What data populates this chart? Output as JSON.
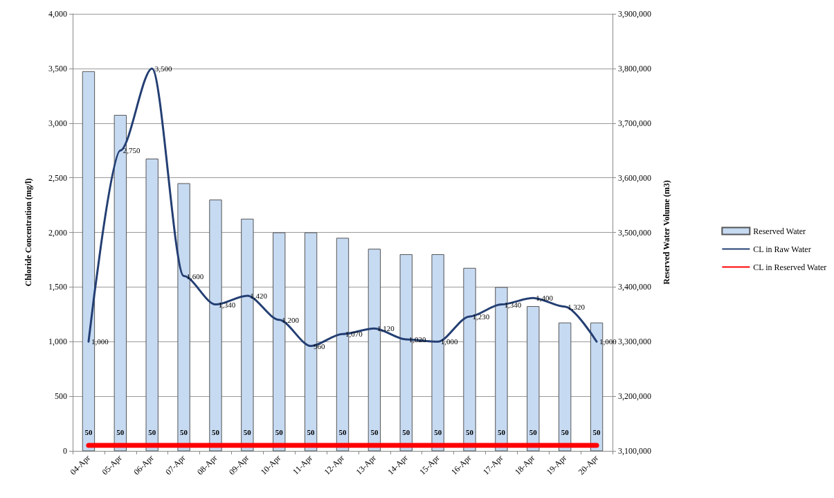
{
  "chart_data": {
    "type": "bar",
    "ylabel": "Chloride Concentration (mg/l)",
    "y2label": "Reserved Water Volume (m3)",
    "categories": [
      "04-Apr",
      "05-Apr",
      "06-Apr",
      "07-Apr",
      "08-Apr",
      "09-Apr",
      "10-Apr",
      "11-Apr",
      "12-Apr",
      "13-Apr",
      "14-Apr",
      "15-Apr",
      "16-Apr",
      "17-Apr",
      "18-Apr",
      "19-Apr",
      "20-Apr"
    ],
    "series": [
      {
        "name": "Reserved Water",
        "axis": "y2",
        "color": "#c6daf2",
        "values": [
          3795000,
          3715000,
          3635000,
          3590000,
          3560000,
          3525000,
          3500000,
          3500000,
          3490000,
          3470000,
          3460000,
          3460000,
          3435000,
          3400000,
          3365000,
          3335000,
          3335000
        ]
      },
      {
        "name": "CL in Raw Water",
        "type": "line",
        "color": "#243f73",
        "values": [
          1000,
          2750,
          3500,
          1600,
          1340,
          1420,
          1200,
          960,
          1070,
          1120,
          1020,
          1000,
          1230,
          1340,
          1400,
          1320,
          1000
        ],
        "value_labels": [
          "1,000",
          "2,750",
          "3,500",
          "1,600",
          "1,340",
          "1,420",
          "1,200",
          "960",
          "1,070",
          "1,120",
          "1,020",
          "1,000",
          "1,230",
          "1,340",
          "1,400",
          "1,320",
          "1,000"
        ]
      },
      {
        "name": "CL in Reserved Water",
        "type": "line",
        "color": "#ff0000",
        "values": [
          50,
          50,
          50,
          50,
          50,
          50,
          50,
          50,
          50,
          50,
          50,
          50,
          50,
          50,
          50,
          50,
          50
        ],
        "value_labels": [
          "50",
          "50",
          "50",
          "50",
          "50",
          "50",
          "50",
          "50",
          "50",
          "50",
          "50",
          "50",
          "50",
          "50",
          "50",
          "50",
          "50"
        ]
      }
    ],
    "ylim": [
      0,
      4000
    ],
    "yticks": [
      {
        "value": 0,
        "label": "0"
      },
      {
        "value": 500,
        "label": "500"
      },
      {
        "value": 1000,
        "label": "1,000"
      },
      {
        "value": 1500,
        "label": "1,500"
      },
      {
        "value": 2000,
        "label": "2,000"
      },
      {
        "value": 2500,
        "label": "2,500"
      },
      {
        "value": 3000,
        "label": "3,000"
      },
      {
        "value": 3500,
        "label": "3,500"
      },
      {
        "value": 4000,
        "label": "4,000"
      }
    ],
    "y2lim": [
      3100000,
      3900000
    ],
    "y2ticks": [
      {
        "value": 3100000,
        "label": "3,100,000"
      },
      {
        "value": 3200000,
        "label": "3,200,000"
      },
      {
        "value": 3300000,
        "label": "3,300,000"
      },
      {
        "value": 3400000,
        "label": "3,400,000"
      },
      {
        "value": 3500000,
        "label": "3,500,000"
      },
      {
        "value": 3600000,
        "label": "3,600,000"
      },
      {
        "value": 3700000,
        "label": "3,700,000"
      },
      {
        "value": 3800000,
        "label": "3,800,000"
      },
      {
        "value": 3900000,
        "label": "3,900,000"
      }
    ],
    "grid": "y",
    "legend": "right",
    "marker": "none"
  }
}
